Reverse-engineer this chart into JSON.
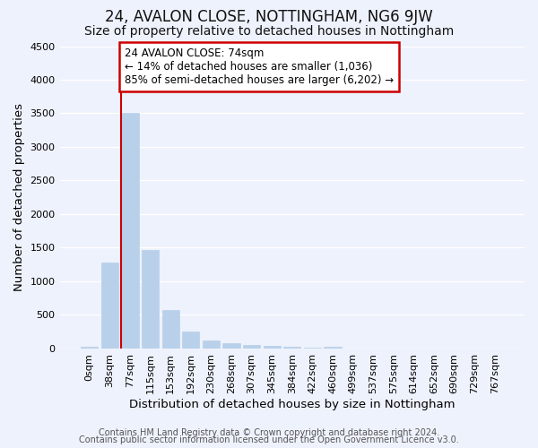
{
  "title": "24, AVALON CLOSE, NOTTINGHAM, NG6 9JW",
  "subtitle": "Size of property relative to detached houses in Nottingham",
  "xlabel": "Distribution of detached houses by size in Nottingham",
  "ylabel": "Number of detached properties",
  "footnote1": "Contains HM Land Registry data © Crown copyright and database right 2024.",
  "footnote2": "Contains public sector information licensed under the Open Government Licence v3.0.",
  "categories": [
    "0sqm",
    "38sqm",
    "77sqm",
    "115sqm",
    "153sqm",
    "192sqm",
    "230sqm",
    "268sqm",
    "307sqm",
    "345sqm",
    "384sqm",
    "422sqm",
    "460sqm",
    "499sqm",
    "537sqm",
    "575sqm",
    "614sqm",
    "652sqm",
    "690sqm",
    "729sqm",
    "767sqm"
  ],
  "values": [
    30,
    1280,
    3500,
    1470,
    570,
    250,
    120,
    80,
    50,
    35,
    20,
    10,
    30,
    5,
    0,
    0,
    0,
    0,
    0,
    0,
    0
  ],
  "bar_color": "#b8d0ea",
  "bar_edge_color": "#b8d0ea",
  "red_line_bar_index": 2,
  "annotation_text": "24 AVALON CLOSE: 74sqm\n← 14% of detached houses are smaller (1,036)\n85% of semi-detached houses are larger (6,202) →",
  "annotation_box_color": "#ffffff",
  "annotation_border_color": "#cc0000",
  "ylim": [
    0,
    4500
  ],
  "yticks": [
    0,
    500,
    1000,
    1500,
    2000,
    2500,
    3000,
    3500,
    4000,
    4500
  ],
  "background_color": "#eef2fc",
  "grid_color": "#ffffff",
  "title_fontsize": 12,
  "subtitle_fontsize": 10,
  "axis_label_fontsize": 9.5,
  "tick_fontsize": 8,
  "annotation_fontsize": 8.5,
  "footnote_fontsize": 7
}
